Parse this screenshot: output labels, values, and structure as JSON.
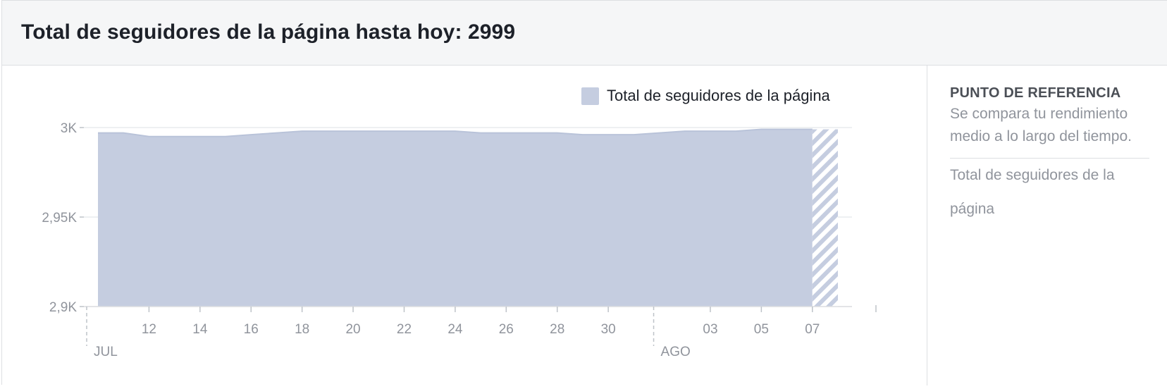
{
  "header": {
    "title": "Total de seguidores de la página hasta hoy: 2999"
  },
  "sidebar": {
    "heading": "PUNTO DE REFERENCIA",
    "description": "Se compara tu rendimiento medio a lo largo del tiempo.",
    "metric": "Total de seguidores de la página"
  },
  "colors": {
    "area_fill": "#c5cde0",
    "area_line": "#b9c3d9",
    "grid": "#e9ebee",
    "axis_text": "#90949c"
  },
  "chart_data": {
    "type": "area",
    "legend": [
      "Total de seguidores de la página"
    ],
    "legend_position": "top-right",
    "ylim": [
      2900,
      3000
    ],
    "yticks": [
      {
        "value": 3000,
        "label": "3K"
      },
      {
        "value": 2950,
        "label": "2,95K"
      },
      {
        "value": 2900,
        "label": "2,9K"
      }
    ],
    "xlim": [
      "2020-07-10",
      "2020-08-08"
    ],
    "xticks": [
      {
        "date": "2020-07-12",
        "label": "12"
      },
      {
        "date": "2020-07-14",
        "label": "14"
      },
      {
        "date": "2020-07-16",
        "label": "16"
      },
      {
        "date": "2020-07-18",
        "label": "18"
      },
      {
        "date": "2020-07-20",
        "label": "20"
      },
      {
        "date": "2020-07-22",
        "label": "22"
      },
      {
        "date": "2020-07-24",
        "label": "24"
      },
      {
        "date": "2020-07-26",
        "label": "26"
      },
      {
        "date": "2020-07-28",
        "label": "28"
      },
      {
        "date": "2020-07-30",
        "label": "30"
      },
      {
        "date": "2020-08-03",
        "label": "03"
      },
      {
        "date": "2020-08-05",
        "label": "05"
      },
      {
        "date": "2020-08-07",
        "label": "07"
      }
    ],
    "month_markers": [
      {
        "date": "2020-07-10",
        "label": "JUL"
      },
      {
        "date": "2020-08-01",
        "label": "AGO"
      }
    ],
    "series": [
      {
        "name": "Total de seguidores de la página",
        "points": [
          {
            "x": "2020-07-10",
            "y": 2997
          },
          {
            "x": "2020-07-11",
            "y": 2997
          },
          {
            "x": "2020-07-12",
            "y": 2995
          },
          {
            "x": "2020-07-13",
            "y": 2995
          },
          {
            "x": "2020-07-14",
            "y": 2995
          },
          {
            "x": "2020-07-15",
            "y": 2995
          },
          {
            "x": "2020-07-16",
            "y": 2996
          },
          {
            "x": "2020-07-17",
            "y": 2997
          },
          {
            "x": "2020-07-18",
            "y": 2998
          },
          {
            "x": "2020-07-19",
            "y": 2998
          },
          {
            "x": "2020-07-20",
            "y": 2998
          },
          {
            "x": "2020-07-21",
            "y": 2998
          },
          {
            "x": "2020-07-22",
            "y": 2998
          },
          {
            "x": "2020-07-23",
            "y": 2998
          },
          {
            "x": "2020-07-24",
            "y": 2998
          },
          {
            "x": "2020-07-25",
            "y": 2997
          },
          {
            "x": "2020-07-26",
            "y": 2997
          },
          {
            "x": "2020-07-27",
            "y": 2997
          },
          {
            "x": "2020-07-28",
            "y": 2997
          },
          {
            "x": "2020-07-29",
            "y": 2996
          },
          {
            "x": "2020-07-30",
            "y": 2996
          },
          {
            "x": "2020-07-31",
            "y": 2996
          },
          {
            "x": "2020-08-01",
            "y": 2997
          },
          {
            "x": "2020-08-02",
            "y": 2998
          },
          {
            "x": "2020-08-03",
            "y": 2998
          },
          {
            "x": "2020-08-04",
            "y": 2998
          },
          {
            "x": "2020-08-05",
            "y": 2999
          },
          {
            "x": "2020-08-06",
            "y": 2999
          },
          {
            "x": "2020-08-07",
            "y": 2999
          },
          {
            "x": "2020-08-08",
            "y": 2999
          }
        ],
        "partial_from": "2020-08-07"
      }
    ]
  }
}
